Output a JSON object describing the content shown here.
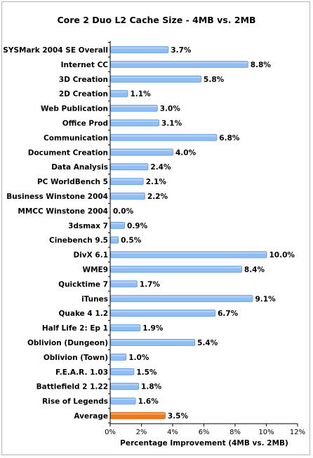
{
  "chart_data": {
    "type": "bar",
    "orientation": "horizontal",
    "title": "Core 2 Duo L2 Cache Size - 4MB vs. 2MB",
    "xlabel": "Percentage Improvement (4MB vs. 2MB)",
    "ylabel": "",
    "xlim": [
      0,
      12
    ],
    "x_ticks": [
      "0%",
      "2%",
      "4%",
      "6%",
      "8%",
      "10%",
      "12%"
    ],
    "grid": false,
    "categories": [
      "SYSMark 2004 SE Overall",
      "Internet CC",
      "3D Creation",
      "2D Creation",
      "Web Publication",
      "Office Prod",
      "Communication",
      "Document Creation",
      "Data Analysis",
      "PC WorldBench 5",
      "Business Winstone 2004",
      "MMCC Winstone 2004",
      "3dsmax 7",
      "Cinebench 9.5",
      "DivX 6.1",
      "WME9",
      "Quicktime 7",
      "iTunes",
      "Quake 4 1.2",
      "Half Life 2: Ep 1",
      "Oblivion (Dungeon)",
      "Oblivion (Town)",
      "F.E.A.R. 1.03",
      "Battlefield 2 1.22",
      "Rise of Legends",
      "Average"
    ],
    "values": [
      3.7,
      8.8,
      5.8,
      1.1,
      3.0,
      3.1,
      6.8,
      4.0,
      2.4,
      2.1,
      2.2,
      0.0,
      0.9,
      0.5,
      10.0,
      8.4,
      1.7,
      9.1,
      6.7,
      1.9,
      5.4,
      1.0,
      1.5,
      1.8,
      1.6,
      3.5
    ],
    "value_labels": [
      "3.7%",
      "8.8%",
      "5.8%",
      "1.1%",
      "3.0%",
      "3.1%",
      "6.8%",
      "4.0%",
      "2.4%",
      "2.1%",
      "2.2%",
      "0.0%",
      "0.9%",
      "0.5%",
      "10.0%",
      "8.4%",
      "1.7%",
      "9.1%",
      "6.7%",
      "1.9%",
      "5.4%",
      "1.0%",
      "1.5%",
      "1.8%",
      "1.6%",
      "3.5%"
    ],
    "colors": {
      "bar": "#8fbef5",
      "bar_edge": "#5b93e0",
      "highlight": "#f07818",
      "highlight_edge": "#c95a0a"
    },
    "highlight_category": "Average"
  }
}
